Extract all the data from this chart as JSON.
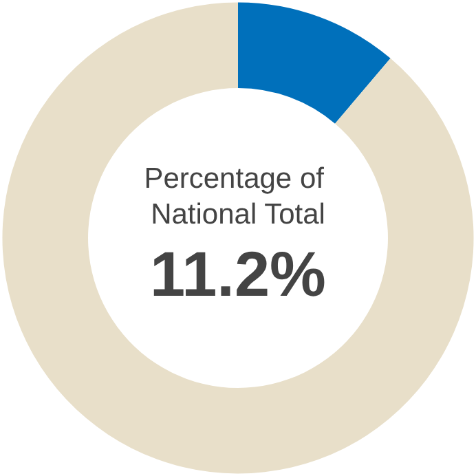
{
  "chart_data": {
    "type": "donut",
    "title": "Percentage of National Total",
    "categories": [
      null,
      null
    ],
    "values": [
      11.2,
      88.8
    ],
    "colors": [
      "#0070bb",
      "#e8dfc9"
    ],
    "annotations": [
      "11.2%"
    ]
  }
}
